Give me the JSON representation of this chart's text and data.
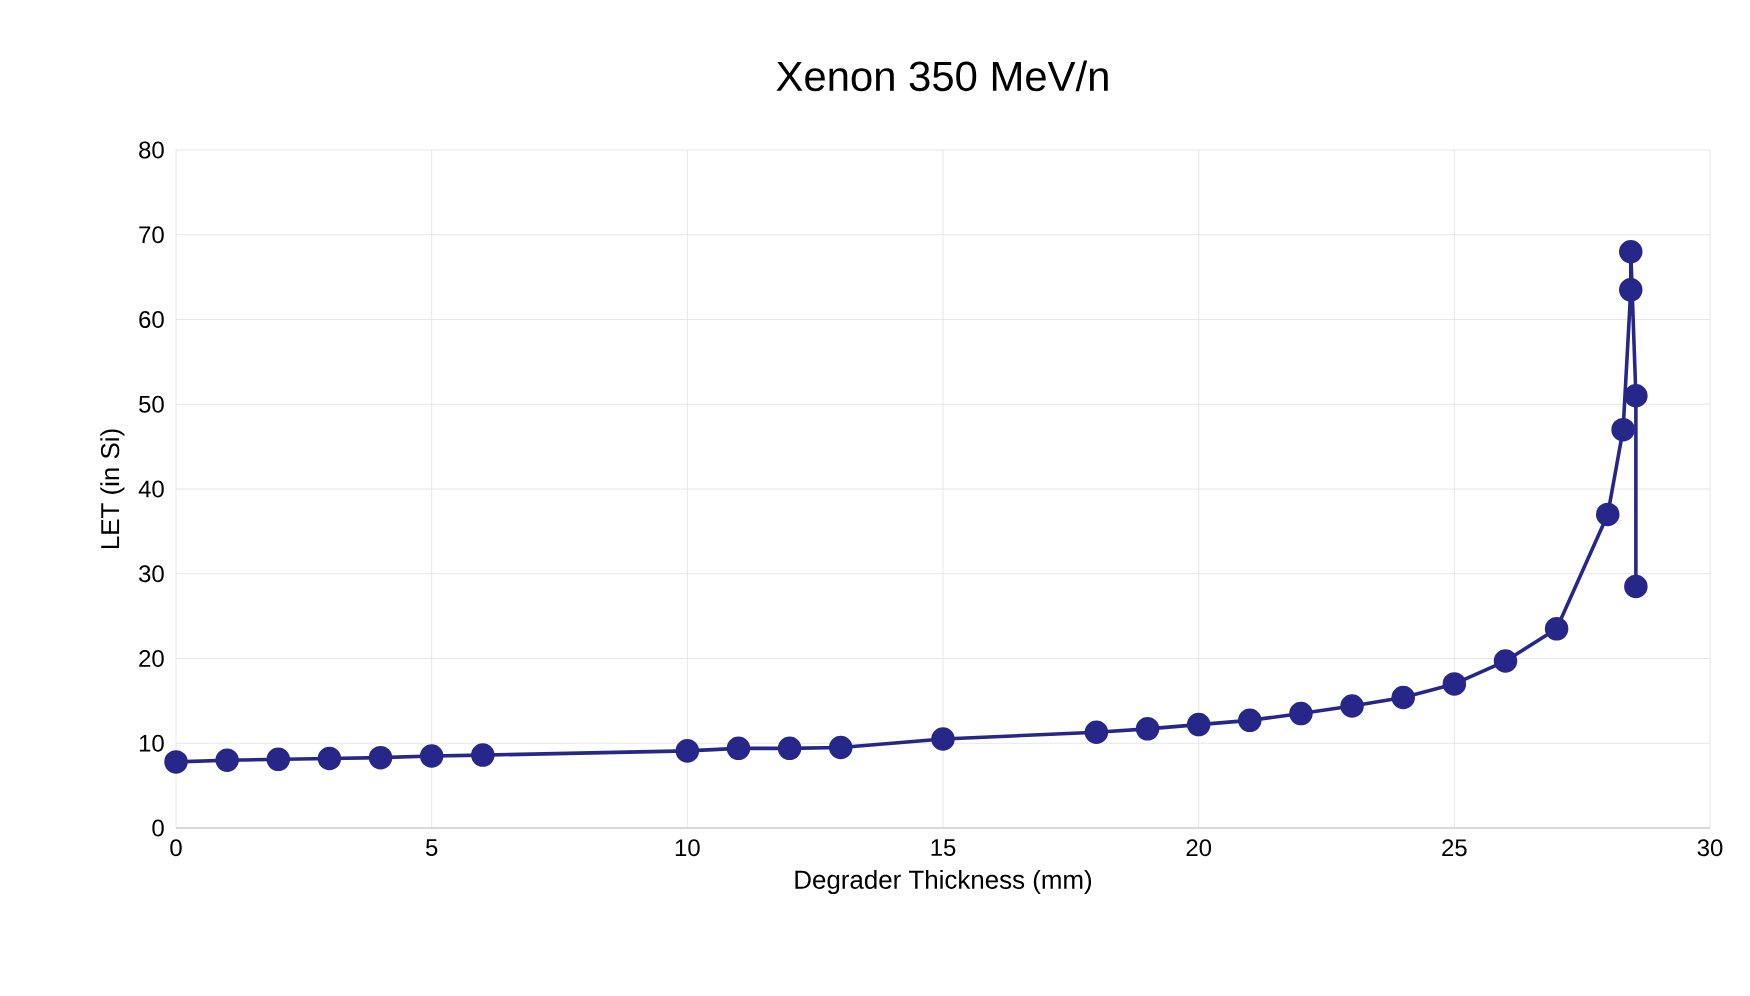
{
  "chart_data": {
    "type": "line",
    "title": "Xenon 350 MeV/n",
    "xlabel": "Degrader Thickness (mm)",
    "ylabel": "LET (in Si)",
    "x": [
      0,
      1,
      2,
      3,
      4,
      5,
      6,
      10,
      11,
      12,
      13,
      15,
      18,
      19,
      20,
      21,
      22,
      23,
      24,
      25,
      26,
      27,
      28,
      28.3,
      28.45,
      28.45,
      28.55,
      28.55
    ],
    "series": [
      {
        "color": "#27278a",
        "values": [
          7.8,
          8.0,
          8.1,
          8.2,
          8.3,
          8.5,
          8.6,
          9.1,
          9.4,
          9.4,
          9.5,
          10.5,
          11.3,
          11.7,
          12.2,
          12.7,
          13.5,
          14.4,
          15.4,
          17.0,
          19.7,
          23.5,
          37,
          47,
          63.5,
          68,
          51,
          28.5
        ]
      }
    ],
    "xlim": [
      0,
      30
    ],
    "ylim": [
      0,
      80
    ],
    "xticks": [
      0,
      5,
      10,
      15,
      20,
      25,
      30
    ],
    "yticks": [
      0,
      10,
      20,
      30,
      40,
      50,
      60,
      70,
      80
    ],
    "grid": true,
    "marker": "circle",
    "line_style": "solid"
  }
}
